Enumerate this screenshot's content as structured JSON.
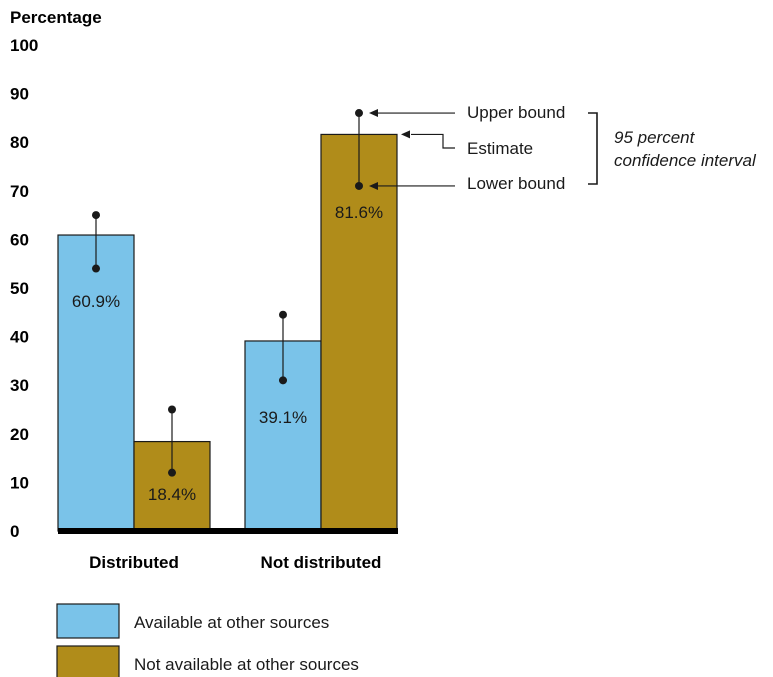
{
  "chart_data": {
    "type": "bar",
    "ylabel": "Percentage",
    "ylim": [
      0,
      100
    ],
    "yticks": [
      0,
      10,
      20,
      30,
      40,
      50,
      60,
      70,
      80,
      90,
      100
    ],
    "categories": [
      "Distributed",
      "Not distributed"
    ],
    "series": [
      {
        "name": "Available at other sources",
        "color": "#7ac3e9",
        "values": [
          60.9,
          39.1
        ],
        "labels": [
          "60.9%",
          "39.1%"
        ],
        "ci_upper": [
          65,
          44.5
        ],
        "ci_lower": [
          54,
          31
        ]
      },
      {
        "name": "Not available at other sources",
        "color": "#b08c1a",
        "values": [
          18.4,
          81.6
        ],
        "labels": [
          "18.4%",
          "81.6%"
        ],
        "ci_upper": [
          25,
          86
        ],
        "ci_lower": [
          12,
          71
        ]
      }
    ],
    "annotations": {
      "upper": "Upper bound",
      "estimate": "Estimate",
      "lower": "Lower bound",
      "ci_line1": "95 percent",
      "ci_line2": "confidence interval"
    },
    "legend_position": "bottom-left"
  }
}
